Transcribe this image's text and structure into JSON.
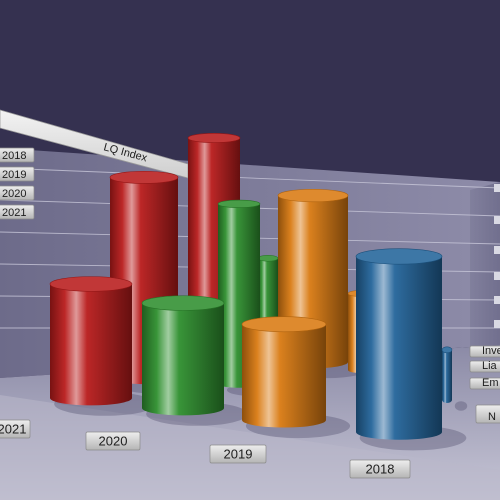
{
  "chart_data": {
    "type": "bar",
    "title": "LQ Index",
    "categories": [
      "2021",
      "2020",
      "2019",
      "2018"
    ],
    "series": [
      {
        "name": "2021",
        "color": "#b81c1c",
        "values": [
          50,
          88,
          93,
          0
        ]
      },
      {
        "name": "2020",
        "color": "#2f8f2f",
        "values": [
          0,
          46,
          79,
          62
        ]
      },
      {
        "name": "2019",
        "color": "#d97a12",
        "values": [
          0,
          42,
          73,
          61
        ]
      },
      {
        "name": "2018",
        "color": "#23649a",
        "values": [
          0,
          0,
          0,
          77
        ]
      }
    ],
    "legend": [
      "2018",
      "2019",
      "2020",
      "2021"
    ],
    "right_labels": [
      "Inve",
      "Lia",
      "Em",
      "N"
    ],
    "grid": true,
    "ylim": [
      0,
      100
    ]
  }
}
